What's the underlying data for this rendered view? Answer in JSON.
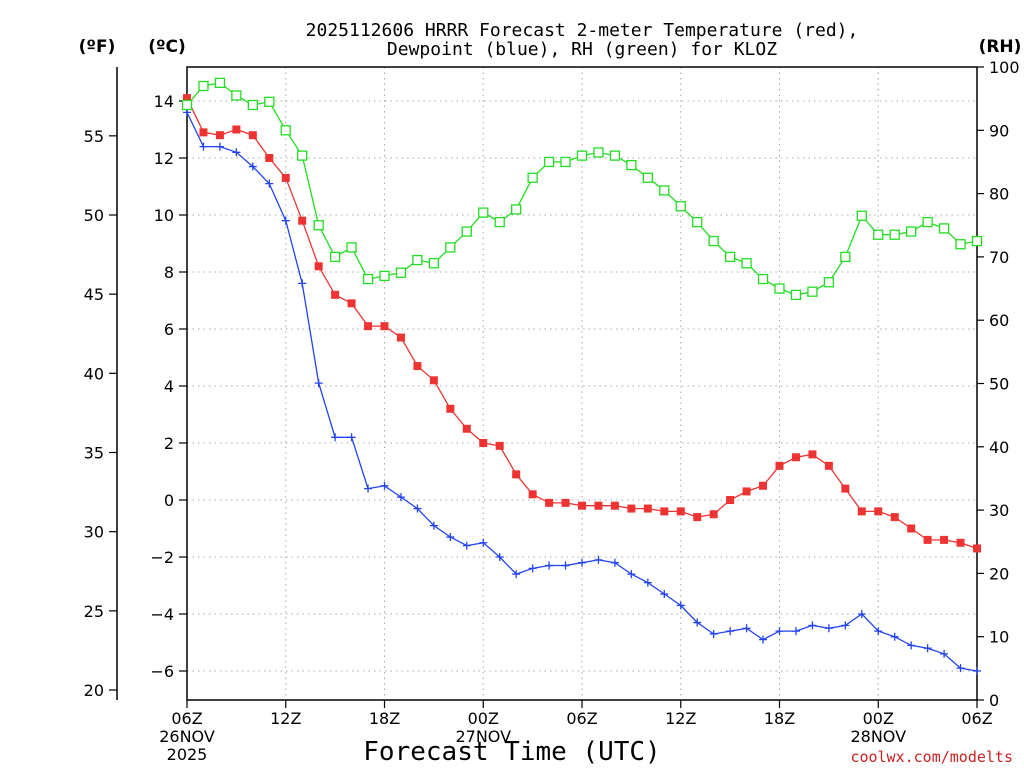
{
  "chart_data": {
    "type": "line",
    "title_line1": "2025112606 HRRR Forecast 2-meter Temperature (red),",
    "title_line2": "Dewpoint (blue), RH (green) for KLOZ",
    "xlabel": "Forecast Time (UTC)",
    "ylabel_left_f": "(ºF)",
    "ylabel_left_c": "(ºC)",
    "ylabel_right": "(RH)",
    "credit": "coolwx.com/modelts",
    "x_hours": [
      0,
      1,
      2,
      3,
      4,
      5,
      6,
      7,
      8,
      9,
      10,
      11,
      12,
      13,
      14,
      15,
      16,
      17,
      18,
      19,
      20,
      21,
      22,
      23,
      24,
      25,
      26,
      27,
      28,
      29,
      30,
      31,
      32,
      33,
      34,
      35,
      36,
      37,
      38,
      39,
      40,
      41,
      42,
      43,
      44,
      45,
      46,
      47,
      48
    ],
    "x_ticks": [
      {
        "hour": 0,
        "label": "06Z",
        "sub1": "26NOV",
        "sub2": "2025"
      },
      {
        "hour": 6,
        "label": "12Z",
        "sub1": "",
        "sub2": ""
      },
      {
        "hour": 12,
        "label": "18Z",
        "sub1": "",
        "sub2": ""
      },
      {
        "hour": 18,
        "label": "00Z",
        "sub1": "27NOV",
        "sub2": ""
      },
      {
        "hour": 24,
        "label": "06Z",
        "sub1": "",
        "sub2": ""
      },
      {
        "hour": 30,
        "label": "12Z",
        "sub1": "",
        "sub2": ""
      },
      {
        "hour": 36,
        "label": "18Z",
        "sub1": "",
        "sub2": ""
      },
      {
        "hour": 42,
        "label": "00Z",
        "sub1": "28NOV",
        "sub2": ""
      },
      {
        "hour": 48,
        "label": "06Z",
        "sub1": "",
        "sub2": ""
      }
    ],
    "ylim_c": [
      -7,
      15.5
    ],
    "ylim_rh": [
      0,
      100
    ],
    "yticks_c": [
      -6,
      -4,
      -2,
      0,
      2,
      4,
      6,
      8,
      10,
      12,
      14
    ],
    "yticks_c_labels": [
      "−6",
      "−4",
      "−2",
      "0",
      "2",
      "4",
      "6",
      "8",
      "10",
      "12",
      "14"
    ],
    "yticks_f": [
      20,
      25,
      30,
      35,
      40,
      45,
      50,
      55
    ],
    "yticks_f_labels": [
      "20",
      "25",
      "30",
      "35",
      "40",
      "45",
      "50",
      "55"
    ],
    "yticks_rh": [
      0,
      10,
      20,
      30,
      40,
      50,
      60,
      70,
      80,
      90,
      100
    ],
    "yticks_rh_labels": [
      "0",
      "10",
      "20",
      "30",
      "40",
      "50",
      "60",
      "70",
      "80",
      "90",
      "100"
    ],
    "series": [
      {
        "name": "Temperature",
        "unit": "C",
        "color": "#ee3333",
        "marker": "filled-square",
        "values": [
          14.1,
          12.9,
          12.8,
          13.0,
          12.8,
          12.0,
          11.3,
          9.8,
          8.2,
          7.2,
          6.9,
          6.1,
          6.1,
          5.7,
          4.7,
          4.2,
          3.2,
          2.5,
          2.0,
          1.9,
          0.9,
          0.2,
          -0.1,
          -0.1,
          -0.2,
          -0.2,
          -0.2,
          -0.3,
          -0.3,
          -0.4,
          -0.4,
          -0.6,
          -0.5,
          0.0,
          0.3,
          0.5,
          1.2,
          1.5,
          1.6,
          1.2,
          0.4,
          -0.4,
          -0.4,
          -0.6,
          -1.0,
          -1.4,
          -1.4,
          -1.5,
          -1.7
        ]
      },
      {
        "name": "Dewpoint",
        "unit": "C",
        "color": "#2244ee",
        "marker": "plus",
        "values": [
          13.6,
          12.4,
          12.4,
          12.2,
          11.7,
          11.1,
          9.8,
          7.6,
          4.1,
          2.2,
          2.2,
          0.4,
          0.5,
          0.1,
          -0.3,
          -0.9,
          -1.3,
          -1.6,
          -1.5,
          -2.0,
          -2.6,
          -2.4,
          -2.3,
          -2.3,
          -2.2,
          -2.1,
          -2.2,
          -2.6,
          -2.9,
          -3.3,
          -3.7,
          -4.3,
          -4.7,
          -4.6,
          -4.5,
          -4.9,
          -4.6,
          -4.6,
          -4.4,
          -4.5,
          -4.4,
          -4.0,
          -4.6,
          -4.8,
          -5.1,
          -5.2,
          -5.4,
          -5.9,
          -6.0
        ]
      },
      {
        "name": "RH",
        "unit": "%",
        "color": "#22dd22",
        "marker": "open-square",
        "values": [
          94,
          97,
          97.5,
          95.5,
          94,
          94.5,
          90,
          86,
          75,
          70,
          71.5,
          66.5,
          67,
          67.5,
          69.5,
          69,
          71.5,
          74,
          77,
          75.5,
          77.5,
          82.5,
          85,
          85,
          86,
          86.5,
          86,
          84.5,
          82.5,
          80.5,
          78,
          75.5,
          72.5,
          70,
          69,
          66.5,
          65,
          64,
          64.5,
          66,
          70,
          76.5,
          73.5,
          73.5,
          74,
          75.5,
          74.5,
          72,
          72.5
        ]
      }
    ]
  }
}
